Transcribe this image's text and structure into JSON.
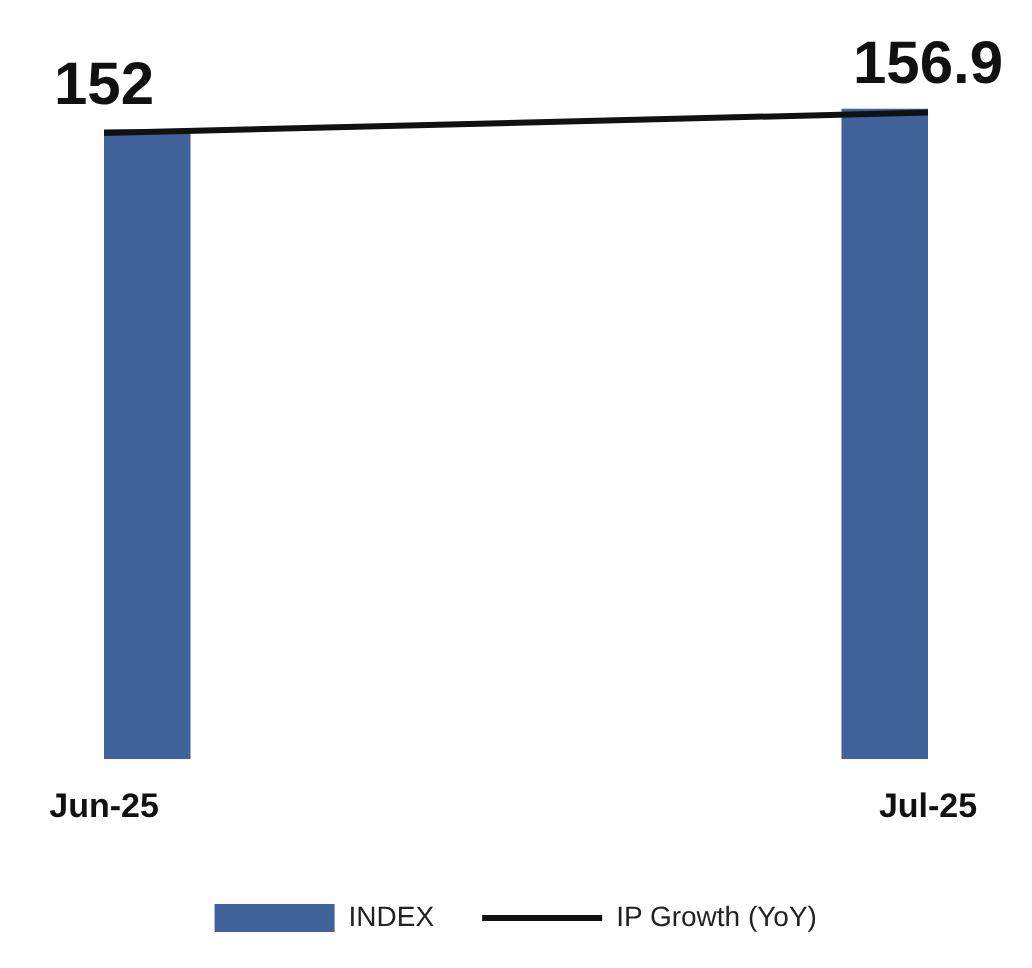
{
  "chart_data": {
    "type": "bar",
    "categories": [
      "Jun-25",
      "Jul-25"
    ],
    "series": [
      {
        "name": "INDEX",
        "color": "#3e6299",
        "values": [
          152,
          156.9
        ],
        "value_labels": [
          "152",
          "156.9"
        ]
      },
      {
        "name": "IP Growth (YoY)",
        "type": "line",
        "color": "#111111",
        "values": [
          151.1,
          156.0
        ]
      }
    ],
    "tick_labels": "x",
    "grid": false,
    "legend": "bottom",
    "marker": "none"
  }
}
